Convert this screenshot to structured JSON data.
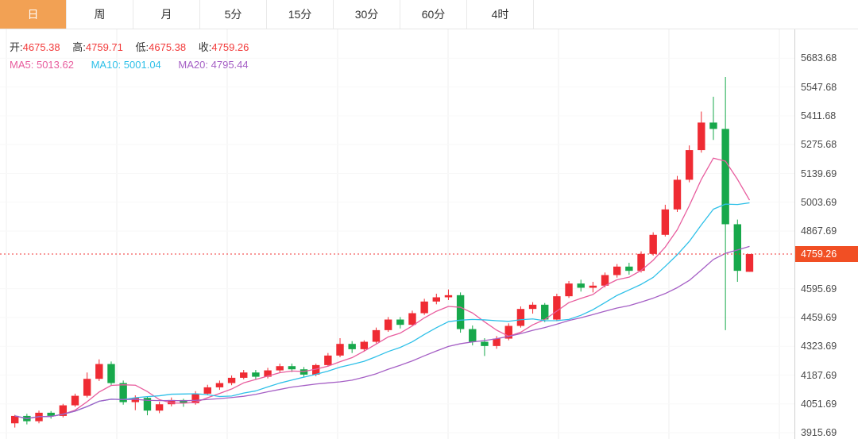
{
  "toolbar": {
    "tabs": [
      {
        "name": "day",
        "label": "日",
        "active": true
      },
      {
        "name": "week",
        "label": "周",
        "active": false
      },
      {
        "name": "month",
        "label": "月",
        "active": false
      },
      {
        "name": "5min",
        "label": "5分",
        "active": false
      },
      {
        "name": "15min",
        "label": "15分",
        "active": false
      },
      {
        "name": "30min",
        "label": "30分",
        "active": false
      },
      {
        "name": "60min",
        "label": "60分",
        "active": false
      },
      {
        "name": "4hour",
        "label": "4时",
        "active": false
      }
    ]
  },
  "readout": {
    "open": {
      "label": "开:",
      "value": "4675.38"
    },
    "high": {
      "label": "高:",
      "value": "4759.71"
    },
    "low": {
      "label": "低:",
      "value": "4675.38"
    },
    "close": {
      "label": "收:",
      "value": "4759.26"
    }
  },
  "ma": {
    "ma5": {
      "label": "MA5:",
      "value": "5013.62"
    },
    "ma10": {
      "label": "MA10:",
      "value": "5001.04"
    },
    "ma20": {
      "label": "MA20:",
      "value": "4795.44"
    }
  },
  "axis": {
    "current_price_label": "4759.26"
  },
  "colors": {
    "up": "#ef2b33",
    "down": "#17a84b",
    "ma5": "#e85d9e",
    "ma10": "#2ec0e8",
    "ma20": "#a55fc5",
    "current_price_line": "#f23030",
    "badge": "#f14f24",
    "active_tab": "#f2a154",
    "value_text": "#f23a3a"
  },
  "chart_data": {
    "type": "candlestick",
    "timeframe_selected": "日",
    "legend": [
      "MA5",
      "MA10",
      "MA20"
    ],
    "ma_periods": [
      5,
      10,
      20
    ],
    "ma_last_values": {
      "MA5": 5013.62,
      "MA10": 5001.04,
      "MA20": 4795.44
    },
    "current_price": 4759.26,
    "ylim": [
      3886,
      5820
    ],
    "grid": true,
    "y_ticks": [
      5683.68,
      5547.68,
      5411.68,
      5275.68,
      5139.69,
      5003.69,
      4867.69,
      4595.69,
      4459.69,
      4323.69,
      4187.69,
      4051.69,
      3915.69
    ],
    "candles_format": [
      "open",
      "high",
      "low",
      "close"
    ],
    "candles": [
      [
        3960,
        4000,
        3940,
        3995
      ],
      [
        3995,
        4005,
        3955,
        3970
      ],
      [
        3970,
        4020,
        3960,
        4010
      ],
      [
        4010,
        4018,
        3982,
        3995
      ],
      [
        3995,
        4052,
        3988,
        4045
      ],
      [
        4045,
        4100,
        4038,
        4090
      ],
      [
        4090,
        4200,
        4082,
        4170
      ],
      [
        4170,
        4262,
        4160,
        4240
      ],
      [
        4240,
        4252,
        4138,
        4150
      ],
      [
        4150,
        4162,
        4048,
        4060
      ],
      [
        4060,
        4092,
        4022,
        4080
      ],
      [
        4080,
        4086,
        3998,
        4020
      ],
      [
        4020,
        4062,
        4008,
        4050
      ],
      [
        4050,
        4082,
        4040,
        4070
      ],
      [
        4070,
        4076,
        4038,
        4055
      ],
      [
        4055,
        4112,
        4048,
        4100
      ],
      [
        4100,
        4142,
        4092,
        4130
      ],
      [
        4130,
        4162,
        4118,
        4150
      ],
      [
        4150,
        4186,
        4140,
        4175
      ],
      [
        4175,
        4212,
        4168,
        4200
      ],
      [
        4200,
        4212,
        4168,
        4180
      ],
      [
        4180,
        4222,
        4172,
        4210
      ],
      [
        4210,
        4242,
        4200,
        4230
      ],
      [
        4230,
        4242,
        4202,
        4215
      ],
      [
        4215,
        4226,
        4178,
        4190
      ],
      [
        4190,
        4242,
        4182,
        4235
      ],
      [
        4235,
        4292,
        4228,
        4280
      ],
      [
        4280,
        4362,
        4272,
        4335
      ],
      [
        4335,
        4348,
        4292,
        4310
      ],
      [
        4310,
        4352,
        4298,
        4345
      ],
      [
        4345,
        4412,
        4338,
        4400
      ],
      [
        4400,
        4462,
        4392,
        4450
      ],
      [
        4450,
        4462,
        4408,
        4425
      ],
      [
        4425,
        4492,
        4418,
        4480
      ],
      [
        4480,
        4548,
        4472,
        4535
      ],
      [
        4535,
        4572,
        4522,
        4555
      ],
      [
        4555,
        4592,
        4542,
        4565
      ],
      [
        4565,
        4578,
        4388,
        4405
      ],
      [
        4405,
        4422,
        4328,
        4345
      ],
      [
        4345,
        4362,
        4278,
        4325
      ],
      [
        4325,
        4372,
        4312,
        4360
      ],
      [
        4360,
        4432,
        4352,
        4420
      ],
      [
        4420,
        4512,
        4412,
        4500
      ],
      [
        4500,
        4532,
        4478,
        4520
      ],
      [
        4520,
        4528,
        4438,
        4450
      ],
      [
        4450,
        4572,
        4442,
        4560
      ],
      [
        4560,
        4632,
        4552,
        4620
      ],
      [
        4620,
        4638,
        4582,
        4600
      ],
      [
        4600,
        4628,
        4578,
        4610
      ],
      [
        4610,
        4672,
        4602,
        4660
      ],
      [
        4660,
        4712,
        4648,
        4700
      ],
      [
        4700,
        4718,
        4662,
        4680
      ],
      [
        4680,
        4772,
        4672,
        4760
      ],
      [
        4760,
        4862,
        4752,
        4850
      ],
      [
        4850,
        4992,
        4842,
        4970
      ],
      [
        4970,
        5128,
        4958,
        5110
      ],
      [
        5110,
        5272,
        5098,
        5250
      ],
      [
        5250,
        5432,
        5238,
        5380
      ],
      [
        5380,
        5502,
        5298,
        5350
      ],
      [
        5350,
        5595,
        4400,
        4900
      ],
      [
        4900,
        4922,
        4628,
        4680
      ],
      [
        4675.38,
        4759.71,
        4675.38,
        4759.26
      ]
    ]
  }
}
